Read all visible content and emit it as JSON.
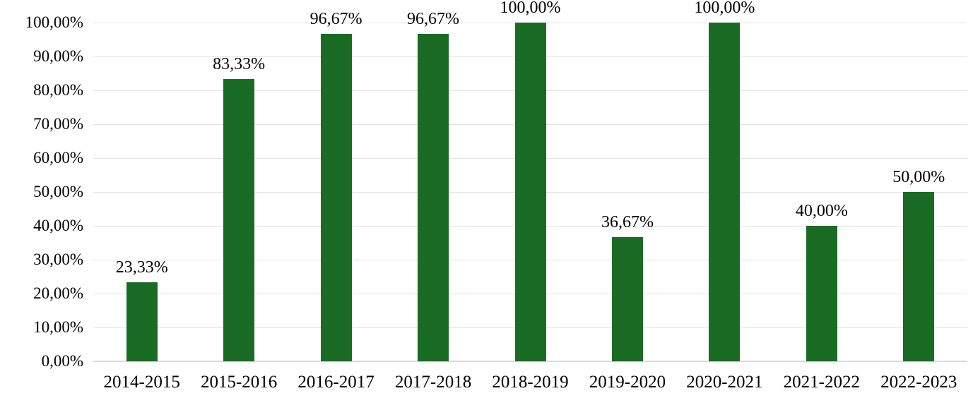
{
  "chart_data": {
    "type": "bar",
    "title": "",
    "xlabel": "",
    "ylabel": "",
    "categories": [
      "2014-2015",
      "2015-2016",
      "2016-2017",
      "2017-2018",
      "2018-2019",
      "2019-2020",
      "2020-2021",
      "2021-2022",
      "2022-2023"
    ],
    "values": [
      23.33,
      83.33,
      96.67,
      96.67,
      100.0,
      36.67,
      100.0,
      40.0,
      50.0
    ],
    "value_labels": [
      "23,33%",
      "83,33%",
      "96,67%",
      "96,67%",
      "100,00%",
      "36,67%",
      "100,00%",
      "40,00%",
      "50,00%"
    ],
    "ylim": [
      0,
      100
    ],
    "ytick_step": 10,
    "ytick_labels": [
      "0,00%",
      "10,00%",
      "20,00%",
      "30,00%",
      "40,00%",
      "50,00%",
      "60,00%",
      "70,00%",
      "80,00%",
      "90,00%",
      "100,00%"
    ],
    "grid": true,
    "legend_position": "none",
    "colors": {
      "bar": "#1A6B24",
      "gridline": "#E2E2E2",
      "axis_line": "#D9D9D9",
      "text": "#000000",
      "background": "#FFFFFF"
    }
  }
}
